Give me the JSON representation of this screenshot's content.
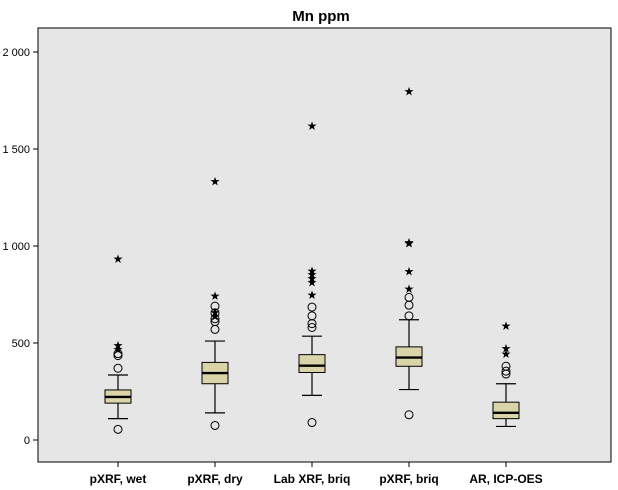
{
  "chart_data": {
    "type": "boxplot",
    "title": "Mn ppm",
    "xlabel": "",
    "ylabel": "",
    "ylim": [
      -110,
      2100
    ],
    "yticks": [
      0,
      500,
      1000,
      1500,
      2000
    ],
    "ytick_labels": [
      "0",
      "500",
      "1 000",
      "1 500",
      "2 000"
    ],
    "grid": false,
    "background": "#e6e6e6",
    "box_color": "#d9d5a8",
    "categories": [
      "pXRF, wet",
      "pXRF, dry",
      "Lab XRF, briq",
      "pXRF, briq",
      "AR, ICP-OES"
    ],
    "boxes": [
      {
        "whisker_low": 110,
        "q1": 190,
        "median": 222,
        "q3": 258,
        "whisker_high": 335,
        "outliers": [
          55,
          370,
          435,
          445
        ],
        "extremes": [
          470,
          490,
          935
        ]
      },
      {
        "whisker_low": 140,
        "q1": 290,
        "median": 345,
        "q3": 400,
        "whisker_high": 510,
        "outliers": [
          75,
          570,
          610,
          625,
          655,
          690
        ],
        "extremes": [
          640,
          660,
          745,
          1335
        ]
      },
      {
        "whisker_low": 230,
        "q1": 348,
        "median": 383,
        "q3": 440,
        "whisker_high": 535,
        "outliers": [
          90,
          580,
          600,
          640,
          685
        ],
        "extremes": [
          750,
          815,
          835,
          855,
          875,
          1620
        ]
      },
      {
        "whisker_low": 260,
        "q1": 380,
        "median": 425,
        "q3": 480,
        "whisker_high": 620,
        "outliers": [
          130,
          640,
          695,
          735
        ],
        "extremes": [
          780,
          870,
          1015,
          1020,
          1800
        ]
      },
      {
        "whisker_low": 70,
        "q1": 110,
        "median": 140,
        "q3": 195,
        "whisker_high": 290,
        "outliers": [
          340,
          355,
          380
        ],
        "extremes": [
          445,
          475,
          590
        ]
      }
    ]
  }
}
